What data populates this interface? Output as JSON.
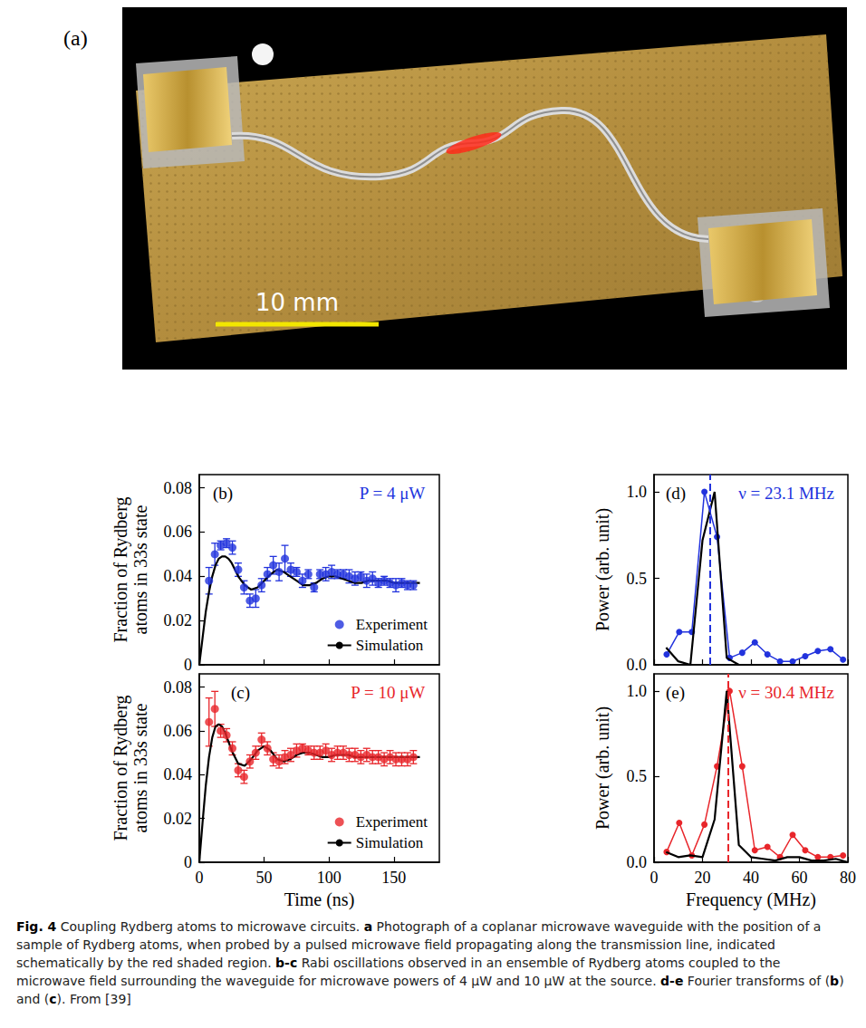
{
  "panel_a": {
    "label": "(a)",
    "scale_bar": "10 mm"
  },
  "chart_data": [
    {
      "type": "scatter",
      "panel": "(b)",
      "annotation": "P = 4 μW",
      "ylabel": "Fraction of Rydberg atoms in 33s state",
      "xlim": [
        0,
        185
      ],
      "xticks": [
        0,
        50,
        100,
        150
      ],
      "ylim": [
        0,
        0.086
      ],
      "yticks": [
        0,
        0.02,
        0.04,
        0.06,
        0.08
      ],
      "tick_labels": "y",
      "grid": false,
      "legend": "lower right",
      "series": [
        {
          "name": "Experiment",
          "type": "scatter",
          "marker": "circle",
          "color": "#2233dd",
          "x": [
            7.5,
            12,
            16.5,
            21,
            25.5,
            30,
            34.5,
            39,
            43.5,
            48,
            52.5,
            57,
            61.5,
            66,
            70.5,
            75,
            79.5,
            84,
            88.5,
            93,
            97.5,
            102,
            106.5,
            111,
            115.5,
            120,
            124.5,
            129,
            133.5,
            138,
            142.5,
            147,
            151.5,
            156,
            160.5,
            165
          ],
          "values": [
            0.038,
            0.05,
            0.054,
            0.055,
            0.053,
            0.043,
            0.035,
            0.029,
            0.03,
            0.036,
            0.041,
            0.045,
            0.042,
            0.048,
            0.043,
            0.042,
            0.038,
            0.041,
            0.035,
            0.041,
            0.041,
            0.042,
            0.041,
            0.041,
            0.04,
            0.039,
            0.04,
            0.038,
            0.039,
            0.037,
            0.038,
            0.037,
            0.036,
            0.037,
            0.036,
            0.036
          ],
          "errors": [
            0.006,
            0.005,
            0.002,
            0.002,
            0.003,
            0.003,
            0.003,
            0.003,
            0.004,
            0.003,
            0.003,
            0.004,
            0.004,
            0.006,
            0.003,
            0.002,
            0.003,
            0.002,
            0.002,
            0.002,
            0.003,
            0.003,
            0.002,
            0.002,
            0.003,
            0.003,
            0.002,
            0.003,
            0.003,
            0.002,
            0.002,
            0.002,
            0.003,
            0.002,
            0.002,
            0.002
          ]
        },
        {
          "name": "Simulation",
          "type": "line",
          "marker": "none",
          "color": "#000000",
          "x": [
            0,
            2.5,
            5,
            7.5,
            10,
            12.5,
            15,
            17.5,
            20,
            22.5,
            25,
            30,
            35,
            40,
            45,
            50,
            55,
            60,
            65,
            70,
            75,
            80,
            85,
            90,
            95,
            100,
            105,
            110,
            115,
            120,
            125,
            130,
            135,
            140,
            145,
            150,
            155,
            160,
            165,
            170
          ],
          "values": [
            0,
            0.012,
            0.024,
            0.033,
            0.04,
            0.045,
            0.048,
            0.049,
            0.049,
            0.048,
            0.046,
            0.04,
            0.036,
            0.034,
            0.035,
            0.038,
            0.041,
            0.043,
            0.042,
            0.04,
            0.038,
            0.036,
            0.036,
            0.037,
            0.039,
            0.04,
            0.04,
            0.039,
            0.038,
            0.037,
            0.037,
            0.038,
            0.038,
            0.038,
            0.038,
            0.037,
            0.037,
            0.037,
            0.037,
            0.037
          ]
        }
      ]
    },
    {
      "type": "scatter",
      "panel": "(c)",
      "annotation": "P = 10 μW",
      "ylabel": "Fraction of Rydberg atoms in 33s state",
      "xlabel": "Time (ns)",
      "xlim": [
        0,
        185
      ],
      "xticks": [
        0,
        50,
        100,
        150
      ],
      "ylim": [
        0,
        0.086
      ],
      "yticks": [
        0,
        0.02,
        0.04,
        0.06,
        0.08
      ],
      "grid": false,
      "legend": "lower right",
      "series": [
        {
          "name": "Experiment",
          "type": "scatter",
          "marker": "circle",
          "color": "#e8262b",
          "x": [
            7.5,
            12,
            16.5,
            21,
            25.5,
            30,
            34.5,
            39,
            43.5,
            48,
            52.5,
            57,
            61.5,
            66,
            70.5,
            75,
            79.5,
            84,
            88.5,
            93,
            97.5,
            102,
            106.5,
            111,
            115.5,
            120,
            124.5,
            129,
            133.5,
            138,
            142.5,
            147,
            151.5,
            156,
            160.5,
            165
          ],
          "values": [
            0.064,
            0.07,
            0.06,
            0.058,
            0.052,
            0.042,
            0.039,
            0.046,
            0.05,
            0.056,
            0.052,
            0.047,
            0.046,
            0.048,
            0.049,
            0.051,
            0.052,
            0.051,
            0.05,
            0.05,
            0.051,
            0.049,
            0.05,
            0.05,
            0.049,
            0.049,
            0.048,
            0.049,
            0.048,
            0.048,
            0.047,
            0.048,
            0.047,
            0.047,
            0.047,
            0.048
          ],
          "errors": [
            0.011,
            0.008,
            0.003,
            0.003,
            0.003,
            0.003,
            0.003,
            0.003,
            0.003,
            0.003,
            0.003,
            0.003,
            0.003,
            0.003,
            0.003,
            0.003,
            0.002,
            0.002,
            0.003,
            0.003,
            0.003,
            0.003,
            0.003,
            0.003,
            0.003,
            0.003,
            0.003,
            0.003,
            0.003,
            0.003,
            0.003,
            0.003,
            0.003,
            0.003,
            0.003,
            0.003
          ]
        },
        {
          "name": "Simulation",
          "type": "line",
          "marker": "none",
          "color": "#000000",
          "x": [
            0,
            2.5,
            5,
            7.5,
            10,
            12.5,
            15,
            17.5,
            20,
            22.5,
            25,
            30,
            35,
            40,
            45,
            50,
            55,
            60,
            65,
            70,
            75,
            80,
            85,
            90,
            95,
            100,
            105,
            110,
            115,
            120,
            125,
            130,
            135,
            140,
            145,
            150,
            155,
            160,
            165,
            170
          ],
          "values": [
            0,
            0.018,
            0.035,
            0.048,
            0.057,
            0.062,
            0.063,
            0.062,
            0.059,
            0.055,
            0.051,
            0.045,
            0.044,
            0.047,
            0.051,
            0.053,
            0.051,
            0.047,
            0.046,
            0.047,
            0.049,
            0.05,
            0.05,
            0.049,
            0.048,
            0.048,
            0.049,
            0.049,
            0.049,
            0.048,
            0.048,
            0.048,
            0.048,
            0.048,
            0.048,
            0.048,
            0.048,
            0.048,
            0.048,
            0.048
          ]
        }
      ]
    },
    {
      "type": "line",
      "panel": "(d)",
      "annotation": "ν = 23.1 MHz",
      "vline": 23.1,
      "ylabel": "Power (arb. unit)",
      "xlim": [
        0,
        80
      ],
      "xticks": [
        0,
        20,
        40,
        60,
        80
      ],
      "ylim": [
        0,
        1.1
      ],
      "yticks": [
        {
          "value": 0,
          "label": "0.0"
        },
        {
          "value": 0.5,
          "label": "0.5"
        },
        {
          "value": 1,
          "label": "1.0"
        }
      ],
      "tick_labels": "y",
      "grid": false,
      "series": [
        {
          "name": "Experiment",
          "type": "line",
          "marker": "circle",
          "color": "#2233dd",
          "x": [
            5.2,
            10.4,
            15.6,
            20.8,
            26,
            31.2,
            36.4,
            41.6,
            46.8,
            52,
            57.2,
            62.4,
            67.6,
            72.8,
            78
          ],
          "values": [
            0.06,
            0.19,
            0.19,
            1,
            0.74,
            0.04,
            0.07,
            0.13,
            0.06,
            0.02,
            0.02,
            0.05,
            0.08,
            0.09,
            0.03
          ]
        },
        {
          "name": "Simulation",
          "type": "line",
          "marker": "none",
          "color": "#000000",
          "x": [
            5,
            10,
            15,
            20,
            25,
            30,
            35,
            40,
            45,
            50,
            55,
            60,
            65,
            70,
            75,
            80
          ],
          "values": [
            0.1,
            0.02,
            0,
            0.72,
            1,
            0.04,
            0,
            0,
            0,
            0,
            0,
            0,
            0,
            0,
            0,
            0
          ]
        }
      ]
    },
    {
      "type": "line",
      "panel": "(e)",
      "annotation": "ν = 30.4 MHz",
      "vline": 30.4,
      "ylabel": "Power (arb. unit)",
      "xlabel": "Frequency (MHz)",
      "xlim": [
        0,
        80
      ],
      "xticks": [
        0,
        20,
        40,
        60,
        80
      ],
      "ylim": [
        0,
        1.1
      ],
      "yticks": [
        {
          "value": 0,
          "label": "0.0"
        },
        {
          "value": 0.5,
          "label": "0.5"
        },
        {
          "value": 1,
          "label": "1.0"
        }
      ],
      "grid": false,
      "series": [
        {
          "name": "Experiment",
          "type": "line",
          "marker": "circle",
          "color": "#e8262b",
          "x": [
            5.2,
            10.4,
            15.6,
            20.8,
            26,
            31.2,
            36.4,
            41.6,
            46.8,
            52,
            57.2,
            62.4,
            67.6,
            72.8,
            78
          ],
          "values": [
            0.06,
            0.23,
            0.04,
            0.22,
            0.56,
            1,
            0.56,
            0.07,
            0.09,
            0.03,
            0.16,
            0.07,
            0.03,
            0.03,
            0.04
          ]
        },
        {
          "name": "Simulation",
          "type": "line",
          "marker": "none",
          "color": "#000000",
          "x": [
            5,
            10,
            15,
            20,
            25,
            30,
            35,
            40,
            45,
            50,
            55,
            60,
            65,
            70,
            75,
            80
          ],
          "values": [
            0.06,
            0.03,
            0.04,
            0.03,
            0.25,
            1,
            0.1,
            0.03,
            0.02,
            0.01,
            0.03,
            0.03,
            0.01,
            0.01,
            0.02,
            0
          ]
        }
      ]
    }
  ],
  "caption": [
    {
      "head": "Fig. 4",
      "text": " Coupling Rydberg atoms to microwave circuits. "
    },
    {
      "head": "a",
      "text": " Photograph of a coplanar microwave waveguide with the position of a sample of Rydberg atoms, when probed by a pulsed microwave field propagating along the transmission line, indicated schematically by the red shaded region. "
    },
    {
      "head": "b-c",
      "text": " Rabi oscillations observed in an ensemble of Rydberg atoms coupled to the microwave field surrounding the waveguide for microwave powers of 4 μW and 10 μW at the source. "
    },
    {
      "head": "d-e",
      "text": " Fourier transforms of ("
    },
    {
      "head": "b",
      "text": ") and ("
    },
    {
      "head": "c",
      "text": "). From [39]"
    }
  ]
}
